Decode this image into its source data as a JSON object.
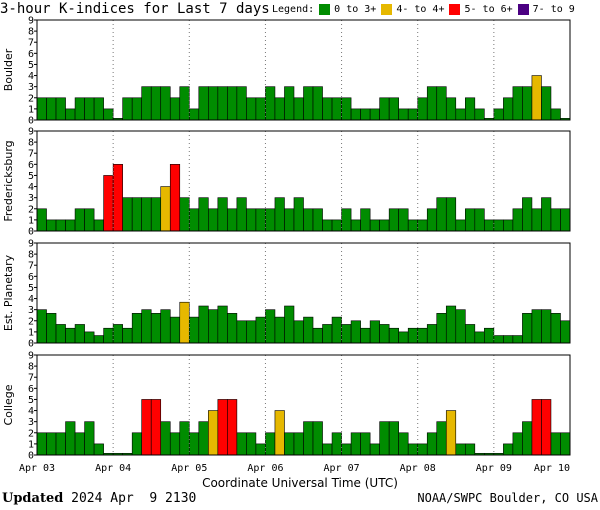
{
  "header": {
    "title": "3-hour K-indices for Last 7 days",
    "legend_label": "Legend:",
    "legend": [
      {
        "label": "0 to 3+",
        "color": "#008c00"
      },
      {
        "label": "4- to 4+",
        "color": "#e6b800"
      },
      {
        "label": "5- to 6+",
        "color": "#ff0000"
      },
      {
        "label": "7- to 9",
        "color": "#4b0082"
      }
    ]
  },
  "footer": {
    "updated_label": "Updated",
    "updated_value": "2024 Apr  9 2130",
    "source": "NOAA/SWPC Boulder, CO USA"
  },
  "chart_data": {
    "type": "bar",
    "xlabel": "Coordinate Universal Time (UTC)",
    "x_ticks": [
      "Apr 03",
      "Apr 04",
      "Apr 05",
      "Apr 06",
      "Apr 07",
      "Apr 08",
      "Apr 09",
      "Apr 10"
    ],
    "ylim": [
      0,
      9
    ],
    "y_ticks": [
      "0",
      "1",
      "2",
      "3",
      "4",
      "5",
      "6",
      "7",
      "8",
      "9"
    ],
    "grid": "vertical dotted at day boundaries",
    "panels": [
      {
        "ylabel": "Boulder",
        "values": [
          2,
          2,
          2,
          1,
          2,
          2,
          2,
          1,
          0,
          2,
          2,
          3,
          3,
          3,
          2,
          3,
          1,
          3,
          3,
          3,
          3,
          3,
          2,
          2,
          3,
          2,
          3,
          2,
          3,
          3,
          2,
          2,
          2,
          1,
          1,
          1,
          2,
          2,
          1,
          1,
          2,
          3,
          3,
          2,
          1,
          2,
          1,
          0,
          1,
          2,
          3,
          3,
          4,
          3,
          1,
          0
        ]
      },
      {
        "ylabel": "Fredericksburg",
        "values": [
          2,
          1,
          1,
          1,
          2,
          2,
          1,
          5,
          6,
          3,
          3,
          3,
          3,
          4,
          6,
          3,
          2,
          3,
          2,
          3,
          2,
          3,
          2,
          2,
          2,
          3,
          2,
          3,
          2,
          2,
          1,
          1,
          2,
          1,
          2,
          1,
          1,
          2,
          2,
          1,
          1,
          2,
          3,
          3,
          1,
          2,
          2,
          1,
          1,
          1,
          2,
          3,
          2,
          3,
          2,
          2,
          0
        ]
      },
      {
        "ylabel": "Est. Planetary",
        "values": [
          3,
          2.67,
          1.67,
          1.33,
          1.67,
          1,
          0.67,
          1.33,
          1.67,
          1.33,
          2.67,
          3,
          2.67,
          3,
          2.33,
          3.67,
          2.33,
          3.33,
          3,
          3.33,
          2.67,
          2,
          2,
          2.33,
          3,
          2.33,
          3.33,
          2,
          2.33,
          1.33,
          1.67,
          2.33,
          1.67,
          2,
          1.33,
          2,
          1.67,
          1.33,
          1,
          1.33,
          1.33,
          1.67,
          2.67,
          3.33,
          3,
          1.67,
          1,
          1.33,
          0.67,
          0.67,
          0.67,
          2.67,
          3,
          3,
          2.67,
          2,
          2
        ]
      },
      {
        "ylabel": "College",
        "values": [
          2,
          2,
          2,
          3,
          2,
          3,
          1,
          0,
          0,
          0,
          2,
          5,
          5,
          3,
          2,
          3,
          2,
          3,
          4,
          5,
          5,
          2,
          2,
          1,
          2,
          4,
          2,
          2,
          3,
          3,
          1,
          2,
          1,
          2,
          2,
          1,
          3,
          3,
          2,
          1,
          1,
          2,
          3,
          4,
          1,
          1,
          0,
          0,
          0,
          1,
          2,
          3,
          5,
          5,
          2,
          2,
          0
        ]
      }
    ]
  }
}
